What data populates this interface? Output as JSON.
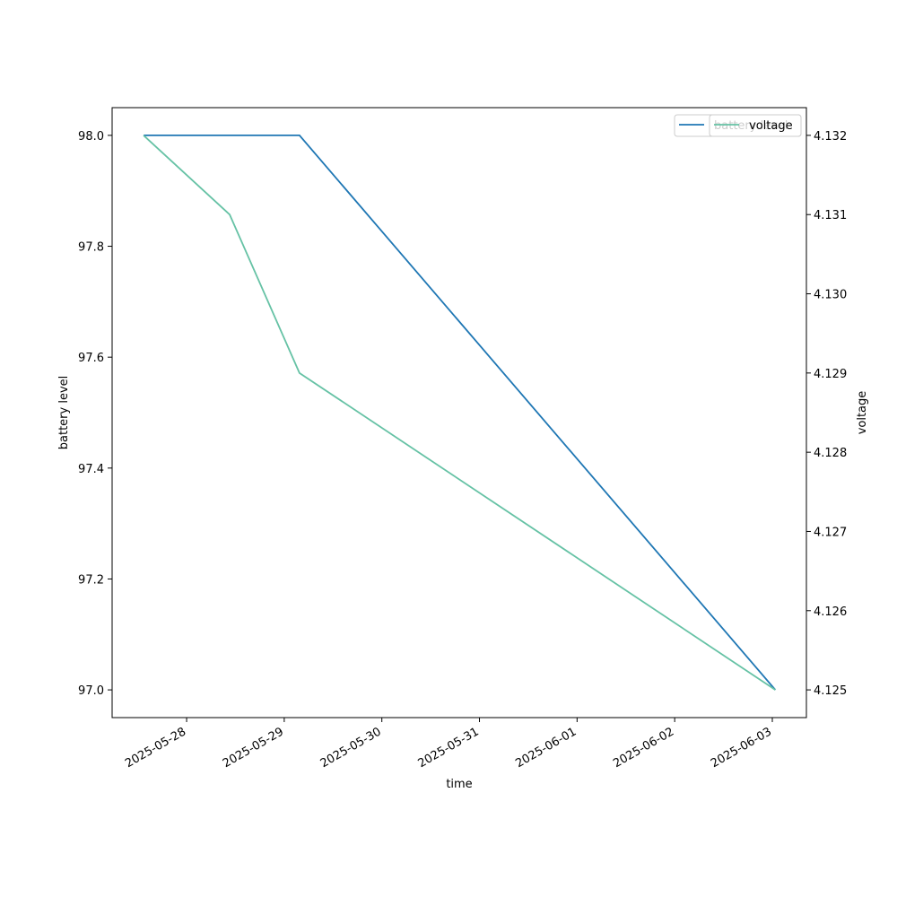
{
  "chart_data": {
    "type": "line",
    "xlabel": "time",
    "ylabel": "battery level",
    "y2label": "voltage",
    "xlim": [
      "2025-05-27T05:41",
      "2025-06-03T08:23"
    ],
    "xticks": [
      "2025-05-28",
      "2025-05-29",
      "2025-05-30",
      "2025-05-31",
      "2025-06-01",
      "2025-06-02",
      "2025-06-03"
    ],
    "ylim": [
      96.95,
      98.05
    ],
    "yticks": [
      {
        "value": 97,
        "label": "97.0"
      },
      97.2,
      97.4,
      97.6,
      97.8,
      {
        "value": 98,
        "label": "98.0"
      }
    ],
    "y2lim": [
      4.12465,
      4.13235
    ],
    "y2ticks": [
      4.125,
      4.126,
      4.127,
      4.128,
      4.129,
      {
        "value": 4.13,
        "label": "4.130"
      },
      4.131,
      4.132
    ],
    "legend": "upper right",
    "series": [
      {
        "name": "battery level",
        "color": "#1f77b4",
        "x": [
          "2025-05-27T13:25",
          "2025-05-29T03:45",
          "2025-06-03T00:45"
        ],
        "values": [
          98,
          98,
          97
        ]
      },
      {
        "name": "voltage",
        "color": "#66c2a5",
        "axis": "y2",
        "x": [
          "2025-05-27T13:25",
          "2025-05-28T10:35",
          "2025-05-29T03:45",
          "2025-06-03T00:45"
        ],
        "values": [
          4.132,
          4.131,
          4.129,
          4.125
        ]
      }
    ]
  }
}
